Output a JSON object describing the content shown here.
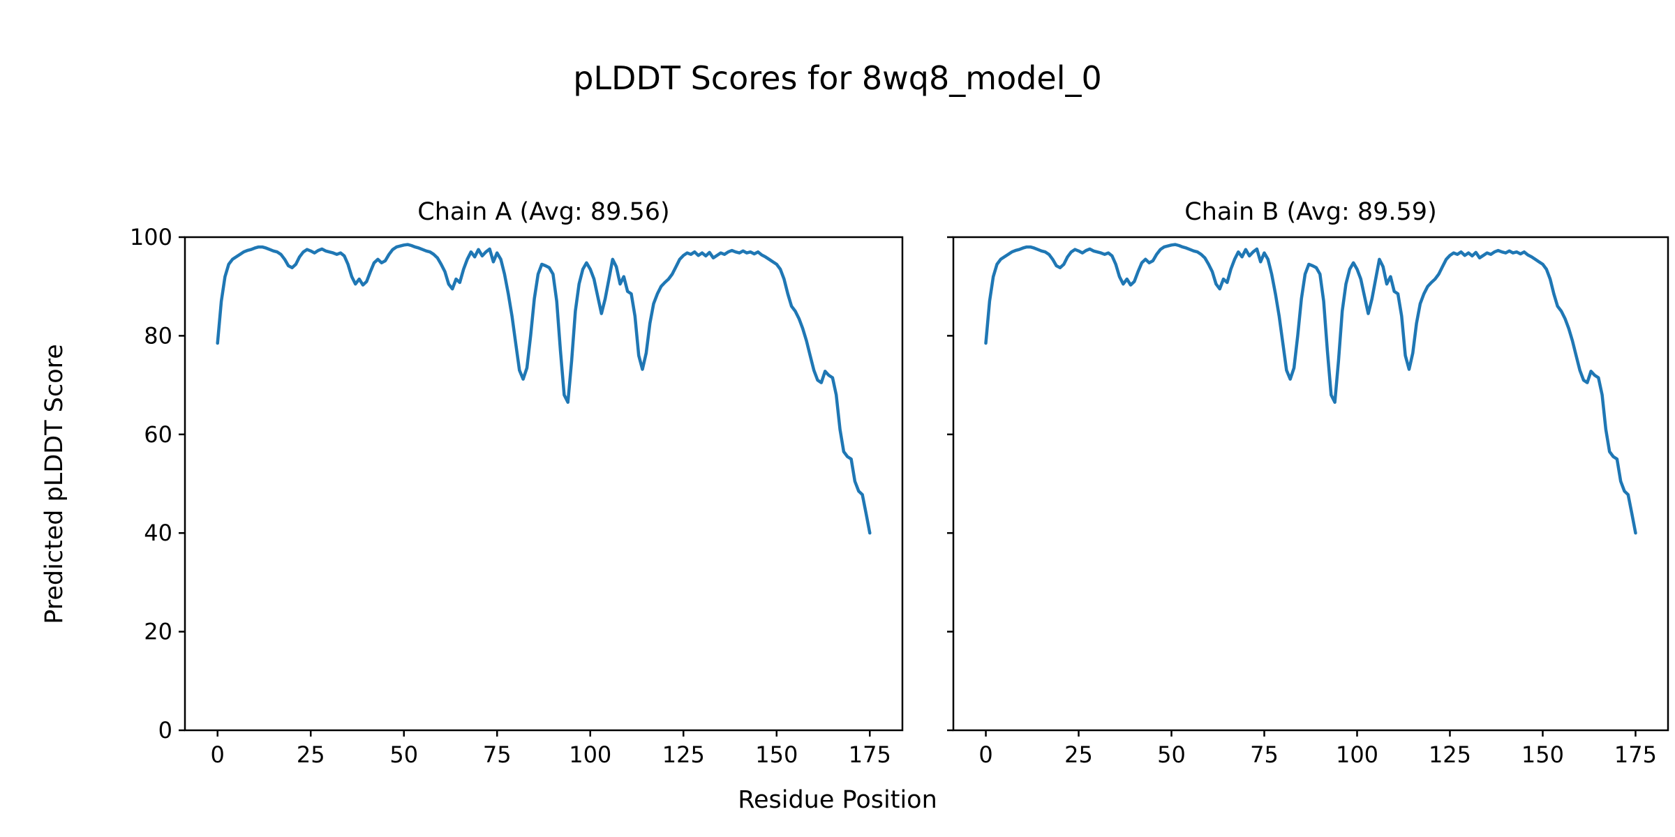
{
  "figure": {
    "title": "pLDDT Scores for 8wq8_model_0"
  },
  "chart_data": {
    "type": "line",
    "title": "pLDDT Scores for 8wq8_model_0",
    "xlabel": "Residue Position",
    "ylabel": "Predicted pLDDT Score",
    "grid": false,
    "legend": null,
    "line_color": "#1f77b4",
    "xlim": [
      -8.75,
      183.75
    ],
    "ylim": [
      0,
      100
    ],
    "xticks": [
      0,
      25,
      50,
      75,
      100,
      125,
      150,
      175
    ],
    "yticks": [
      0,
      20,
      40,
      60,
      80,
      100
    ],
    "x_start": 0,
    "x_step": 1,
    "subplots": [
      {
        "name": "Chain A",
        "title": "Chain A (Avg: 89.56)",
        "avg": 89.56,
        "y_tick_labels": true
      },
      {
        "name": "Chain B",
        "title": "Chain B (Avg: 89.59)",
        "avg": 89.59,
        "y_tick_labels": false
      }
    ],
    "values_note": "Both chains are visually identical; shared series below, x = residue 0..175",
    "values": [
      78.5,
      87,
      92,
      94.5,
      95.5,
      96,
      96.5,
      97,
      97.3,
      97.5,
      97.8,
      98,
      98,
      97.8,
      97.5,
      97.2,
      97,
      96.5,
      95.5,
      94.2,
      93.8,
      94.5,
      96,
      97,
      97.5,
      97.2,
      96.8,
      97.3,
      97.6,
      97.2,
      97,
      96.8,
      96.5,
      96.8,
      96.2,
      94.5,
      92,
      90.5,
      91.5,
      90.3,
      91,
      93,
      94.8,
      95.5,
      94.8,
      95.2,
      96.5,
      97.5,
      98,
      98.2,
      98.4,
      98.5,
      98.3,
      98,
      97.8,
      97.5,
      97.2,
      97,
      96.5,
      95.8,
      94.5,
      93,
      90.5,
      89.5,
      91.5,
      90.8,
      93.5,
      95.5,
      97,
      96,
      97.5,
      96.2,
      97,
      97.6,
      95,
      96.8,
      95.5,
      92.5,
      88.5,
      84,
      78.5,
      73,
      71.2,
      73.5,
      80,
      87.5,
      92.5,
      94.5,
      94.2,
      93.8,
      92.5,
      87,
      77,
      68,
      66.5,
      75,
      85,
      90.5,
      93.5,
      94.8,
      93.5,
      91.5,
      88,
      84.5,
      87.5,
      91.5,
      95.5,
      94,
      90.5,
      92,
      89,
      88.5,
      84,
      76,
      73.2,
      76.5,
      82.5,
      86.5,
      88.5,
      90,
      90.8,
      91.5,
      92.5,
      94,
      95.5,
      96.3,
      96.8,
      96.5,
      97,
      96.3,
      96.8,
      96.2,
      96.9,
      95.8,
      96.3,
      96.8,
      96.5,
      97,
      97.3,
      97,
      96.8,
      97.2,
      96.8,
      97,
      96.6,
      97,
      96.4,
      96,
      95.5,
      95,
      94.5,
      93.5,
      91.5,
      88.5,
      86,
      85,
      83.5,
      81.5,
      79,
      76,
      73,
      71,
      70.5,
      72.8,
      72,
      71.5,
      68,
      61,
      56.5,
      55.5,
      55,
      50.5,
      48.5,
      47.8,
      44,
      40
    ]
  }
}
